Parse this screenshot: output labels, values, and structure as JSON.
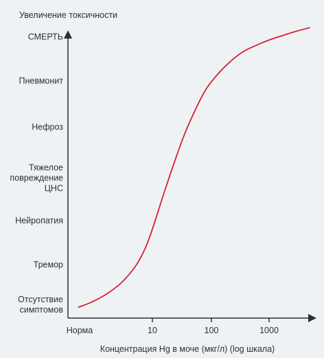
{
  "chart_data": {
    "type": "line",
    "title": "Увеличение токсичности",
    "xlabel": "Концентрация Hg в моче (мкг/л) (log шкала)",
    "ylabel": "",
    "x_scale": "log",
    "x_tick_labels": [
      {
        "value": 1,
        "label": "Норма"
      },
      {
        "value": 10,
        "label": "10"
      },
      {
        "value": 100,
        "label": "100"
      },
      {
        "value": 1000,
        "label": "1000"
      }
    ],
    "y_categories": [
      {
        "level": 0,
        "lines": [
          "Отсутствие",
          "симптомов"
        ]
      },
      {
        "level": 1,
        "lines": [
          "Тремор"
        ]
      },
      {
        "level": 2,
        "lines": [
          "Нейропатия"
        ]
      },
      {
        "level": 3,
        "lines": [
          "Тяжелое",
          "повреждение",
          "ЦНС"
        ]
      },
      {
        "level": 4,
        "lines": [
          "Нефроз"
        ]
      },
      {
        "level": 5,
        "lines": [
          "Пневмонит"
        ]
      },
      {
        "level": 6,
        "lines": [
          "СМЕРТЬ"
        ]
      }
    ],
    "series": [
      {
        "color": "#d8202e",
        "x": [
          1.1,
          1.6,
          2.5,
          4,
          6,
          8,
          10,
          15,
          22,
          35,
          55,
          80,
          120,
          200,
          350,
          600,
          1000,
          1800,
          3000,
          5000
        ],
        "y": [
          -0.07,
          0.05,
          0.25,
          0.55,
          0.95,
          1.35,
          1.8,
          2.55,
          3.2,
          3.85,
          4.4,
          4.8,
          5.1,
          5.4,
          5.65,
          5.8,
          5.92,
          6.03,
          6.12,
          6.2
        ]
      }
    ],
    "grid": false,
    "legend": "none"
  }
}
